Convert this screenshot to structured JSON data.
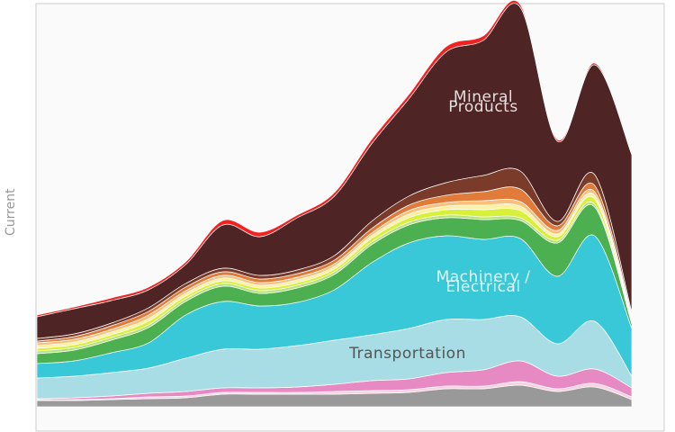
{
  "chart_data": {
    "type": "stacked-area",
    "y_label": "Current",
    "categories": [
      null,
      null,
      null,
      null,
      null,
      null,
      null,
      null,
      null,
      null,
      null,
      null,
      null,
      null,
      null,
      null,
      null
    ],
    "ylim": [
      0,
      450
    ],
    "series": [
      {
        "color": "#999999",
        "values": [
          7,
          7,
          8,
          9,
          10,
          14,
          14,
          14,
          14,
          15,
          16,
          20,
          20,
          24,
          17,
          22,
          8
        ]
      },
      {
        "color": "#fbd0e0",
        "values": [
          1,
          1,
          1,
          2,
          2,
          2,
          2,
          2,
          3,
          3,
          3,
          3,
          3,
          4,
          3,
          4,
          3
        ]
      },
      {
        "color": "#e78ac3",
        "values": [
          1,
          2,
          3,
          4,
          5,
          5,
          5,
          6,
          8,
          11,
          12,
          15,
          18,
          23,
          14,
          16,
          10
        ]
      },
      {
        "name": "Transportation",
        "color": "#a8dde6",
        "values": [
          23,
          24,
          26,
          28,
          37,
          43,
          43,
          46,
          49,
          51,
          56,
          59,
          56,
          49,
          36,
          53,
          13
        ]
      },
      {
        "name": "Machinery / Electrical",
        "color": "#39c8d8",
        "values": [
          16,
          17,
          22,
          28,
          48,
          53,
          48,
          48,
          56,
          80,
          95,
          93,
          89,
          87,
          75,
          95,
          53
        ]
      },
      {
        "color": "#4caf50",
        "values": [
          11,
          12,
          14,
          17,
          15,
          17,
          14,
          16,
          17,
          20,
          20,
          20,
          22,
          20,
          37,
          32,
          5
        ]
      },
      {
        "color": "#b5e27a",
        "values": [
          3,
          3,
          3,
          3,
          3,
          3,
          3,
          3,
          3,
          3,
          3,
          3,
          3,
          3,
          3,
          3,
          2
        ]
      },
      {
        "color": "#d7f03a",
        "values": [
          3,
          3,
          3,
          4,
          3,
          3,
          3,
          3,
          3,
          4,
          5,
          6,
          8,
          8,
          4,
          6,
          2
        ]
      },
      {
        "color": "#fdf0a0",
        "values": [
          3,
          3,
          3,
          3,
          3,
          3,
          3,
          3,
          3,
          3,
          4,
          4,
          5,
          5,
          3,
          4,
          2
        ]
      },
      {
        "color": "#f8c07a",
        "values": [
          3,
          3,
          3,
          4,
          3,
          3,
          3,
          3,
          3,
          3,
          4,
          4,
          5,
          5,
          4,
          4,
          2
        ]
      },
      {
        "color": "#e07b39",
        "values": [
          2,
          3,
          4,
          4,
          4,
          4,
          4,
          4,
          4,
          5,
          6,
          8,
          10,
          14,
          5,
          7,
          2
        ]
      },
      {
        "color": "#7a3b2a",
        "values": [
          3,
          3,
          3,
          4,
          4,
          4,
          4,
          4,
          5,
          8,
          10,
          14,
          18,
          20,
          5,
          12,
          3
        ]
      },
      {
        "name": "Mineral Products",
        "color": "#4e2424",
        "values": [
          24,
          28,
          25,
          20,
          21,
          48,
          43,
          58,
          66,
          86,
          108,
          145,
          150,
          182,
          89,
          122,
          175
        ]
      },
      {
        "color": "#f22222",
        "values": [
          2,
          2,
          3,
          3,
          3,
          5,
          5,
          3,
          4,
          5,
          5,
          6,
          5,
          3,
          2,
          2,
          1
        ]
      }
    ]
  }
}
